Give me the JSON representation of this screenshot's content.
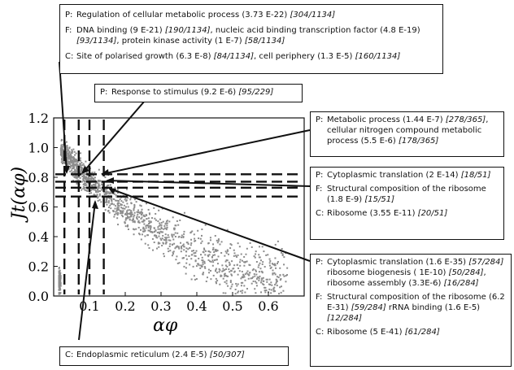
{
  "chart_data": {
    "type": "scatter",
    "xlabel": "αφ",
    "ylabel": "Jt(αφ)",
    "xlim": [
      0,
      0.7
    ],
    "ylim": [
      0,
      1.2
    ],
    "x_ticks": [
      "0.1",
      "0.2",
      "0.3",
      "0.4",
      "0.5",
      "0.6"
    ],
    "y_ticks": [
      "0.0",
      "0.2",
      "0.4",
      "0.6",
      "0.8",
      "1.0",
      "1.2"
    ],
    "threshold_lines_x": [
      0.03,
      0.07,
      0.1,
      0.14
    ],
    "threshold_lines_y": [
      0.67,
      0.73,
      0.77,
      0.82
    ],
    "point_color": "#8c8c8c",
    "trend": [
      {
        "x": 0.02,
        "y": 0.98
      },
      {
        "x": 0.05,
        "y": 0.9
      },
      {
        "x": 0.08,
        "y": 0.82
      },
      {
        "x": 0.12,
        "y": 0.74
      },
      {
        "x": 0.16,
        "y": 0.65
      },
      {
        "x": 0.2,
        "y": 0.58
      },
      {
        "x": 0.25,
        "y": 0.5
      },
      {
        "x": 0.3,
        "y": 0.42
      },
      {
        "x": 0.35,
        "y": 0.36
      },
      {
        "x": 0.4,
        "y": 0.3
      },
      {
        "x": 0.45,
        "y": 0.25
      },
      {
        "x": 0.5,
        "y": 0.2
      },
      {
        "x": 0.55,
        "y": 0.16
      },
      {
        "x": 0.6,
        "y": 0.13
      },
      {
        "x": 0.65,
        "y": 0.1
      }
    ]
  },
  "annotations": {
    "top": {
      "p": {
        "prefix": "P:",
        "text": "Regulation of cellular metabolic process (3.73 E-22) ",
        "count": "[304/1134]"
      },
      "f": {
        "prefix": "F:",
        "t1": "DNA binding (9 E-21) ",
        "c1": "[190/1134]",
        "t2": ", nucleic acid binding transcription factor (4.8 E-19) ",
        "c2": "[93/1134]",
        "t3": ", protein kinase activity (1 E-7) ",
        "c3": "[58/1134]"
      },
      "c": {
        "prefix": "C:",
        "t1": "Site of polarised growth (6.3 E-8) ",
        "c1": "[84/1134]",
        "t2": ", cell periphery (1.3 E-5) ",
        "c2": "[160/1134]"
      }
    },
    "stimulus": {
      "prefix": "P:",
      "text": "Response to stimulus (9.2 E-6) ",
      "count": "[95/229]"
    },
    "metabolic": {
      "prefix": "P:",
      "t1": "Metabolic process (1.44 E-7) ",
      "c1": "[278/365]",
      "t2": ", cellular nitrogen compound metabolic process (5.5 E-6) ",
      "c2": "[178/365]"
    },
    "cyto": {
      "p": {
        "prefix": "P:",
        "text": "Cytoplasmic translation (2 E-14) ",
        "count": "[18/51]"
      },
      "f": {
        "prefix": "F:",
        "text": "Structural composition of the ribosome (1.8 E-9) ",
        "count": "[15/51]"
      },
      "c": {
        "prefix": "C:",
        "text": "Ribosome (3.55 E-11) ",
        "count": "[20/51]"
      }
    },
    "bottom_right": {
      "p": {
        "prefix": "P:",
        "t1": "Cytoplasmic translation (1.6 E-35) ",
        "c1": "[57/284]",
        "t2": " ribosome biogenesis ( 1E-10) ",
        "c2": "[50/284]",
        "t3": ", ribosome assembly (3.3E-6) ",
        "c3": "[16/284]"
      },
      "f": {
        "prefix": "F:",
        "t1": "Structural composition of the ribosome (6.2 E-31) ",
        "c1": "[59/284]",
        "t2": " rRNA binding (1.6 E-5) ",
        "c2": "[12/284]"
      },
      "c": {
        "prefix": "C:",
        "text": "Ribosome (5 E-41) ",
        "count": "[61/284]"
      }
    },
    "er": {
      "prefix": "C:",
      "text": "Endoplasmic reticulum (2.4 E-5) ",
      "count": "[50/307]"
    }
  }
}
